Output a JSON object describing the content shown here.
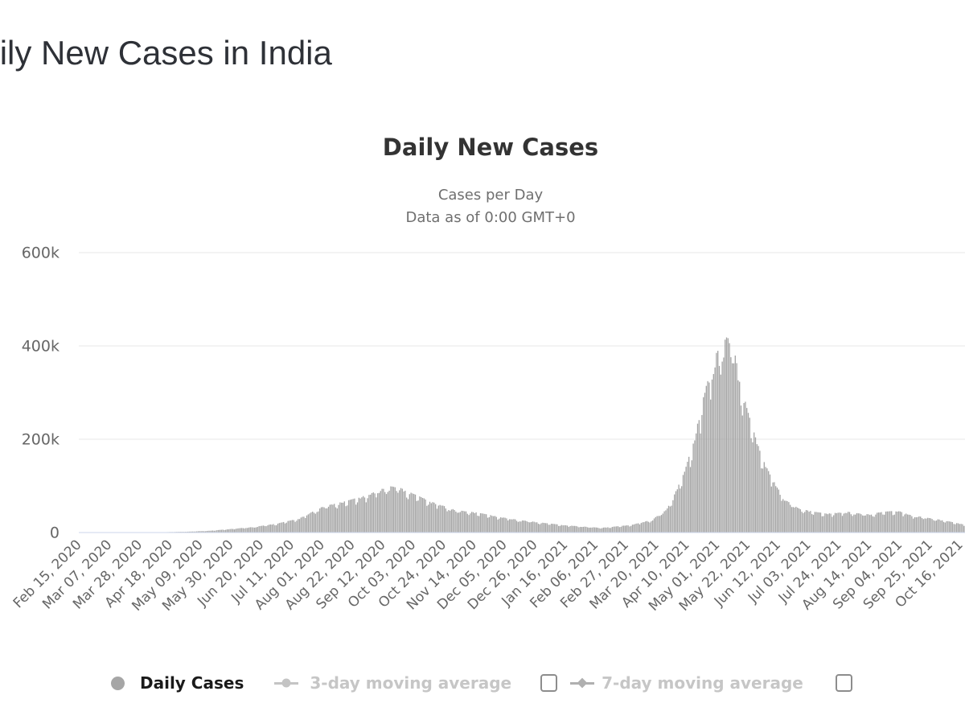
{
  "page": {
    "title": "Daily New Cases in India"
  },
  "chart": {
    "title": "Daily New Cases",
    "subtitle_line1": "Cases per Day",
    "subtitle_line2": "Data as of 0:00 GMT+0"
  },
  "colors": {
    "bar": "#a2a2a2",
    "grid_line": "#e7e7e7",
    "axis_line": "#ccd6eb",
    "tick_text": "#666666",
    "chart_title": "#333333",
    "subtitle_text": "#6f6f6f",
    "legend_active": "#1a1a1a",
    "legend_disabled": "#c6c6c6",
    "ma3_marker": "#c4c4c4",
    "ma7_marker": "#b0b0b0"
  },
  "chart_data": {
    "type": "bar",
    "title": "Daily New Cases",
    "subtitle": [
      "Cases per Day",
      "Data as of 0:00 GMT+0"
    ],
    "ylabel": "",
    "xlabel": "",
    "ylim": [
      0,
      600000
    ],
    "grid": true,
    "legend_position": "bottom",
    "x_is_daily_dates": true,
    "x_start_date": "Feb 15, 2020",
    "x_tick_interval_days": 21,
    "x_tick_labels": [
      "Feb 15, 2020",
      "Mar 07, 2020",
      "Mar 28, 2020",
      "Apr 18, 2020",
      "May 09, 2020",
      "May 30, 2020",
      "Jun 20, 2020",
      "Jul 11, 2020",
      "Aug 01, 2020",
      "Aug 22, 2020",
      "Sep 12, 2020",
      "Oct 03, 2020",
      "Oct 24, 2020",
      "Nov 14, 2020",
      "Dec 05, 2020",
      "Dec 26, 2020",
      "Jan 16, 2021",
      "Feb 06, 2021",
      "Feb 27, 2021",
      "Mar 20, 2021",
      "Apr 10, 2021",
      "May 01, 2021",
      "May 22, 2021",
      "Jun 12, 2021",
      "Jul 03, 2021",
      "Jul 24, 2021",
      "Aug 14, 2021",
      "Sep 04, 2021",
      "Sep 25, 2021",
      "Oct 16, 2021"
    ],
    "y_ticks": [
      {
        "label": "0",
        "value": 0
      },
      {
        "label": "200k",
        "value": 200000
      },
      {
        "label": "400k",
        "value": 400000
      },
      {
        "label": "600k",
        "value": 600000
      }
    ],
    "series": [
      {
        "name": "Daily Cases",
        "type": "column",
        "visible": true,
        "color": "#a2a2a2",
        "n_days": 613,
        "anchors_day_value": [
          [
            0,
            2
          ],
          [
            20,
            5
          ],
          [
            30,
            40
          ],
          [
            40,
            120
          ],
          [
            47,
            350
          ],
          [
            60,
            900
          ],
          [
            76,
            1900
          ],
          [
            91,
            3900
          ],
          [
            106,
            7800
          ],
          [
            121,
            11800
          ],
          [
            137,
            19000
          ],
          [
            152,
            29500
          ],
          [
            168,
            54000
          ],
          [
            183,
            64500
          ],
          [
            199,
            78000
          ],
          [
            208,
            89500
          ],
          [
            214,
            96000
          ],
          [
            221,
            93500
          ],
          [
            229,
            82500
          ],
          [
            244,
            63000
          ],
          [
            260,
            46500
          ],
          [
            275,
            41500
          ],
          [
            290,
            32500
          ],
          [
            305,
            25500
          ],
          [
            321,
            20000
          ],
          [
            336,
            15000
          ],
          [
            352,
            11600
          ],
          [
            360,
            9800
          ],
          [
            367,
            11600
          ],
          [
            381,
            15800
          ],
          [
            395,
            26000
          ],
          [
            405,
            46000
          ],
          [
            411,
            79000
          ],
          [
            418,
            126000
          ],
          [
            425,
            198000
          ],
          [
            432,
            294000
          ],
          [
            440,
            372000
          ],
          [
            447,
            404000
          ],
          [
            451,
            398000
          ],
          [
            455,
            335000
          ],
          [
            461,
            258000
          ],
          [
            468,
            187000
          ],
          [
            475,
            133000
          ],
          [
            482,
            93000
          ],
          [
            489,
            65000
          ],
          [
            496,
            51500
          ],
          [
            503,
            45800
          ],
          [
            510,
            42000
          ],
          [
            517,
            39500
          ],
          [
            524,
            41000
          ],
          [
            531,
            43000
          ],
          [
            538,
            39800
          ],
          [
            545,
            37800
          ],
          [
            552,
            41500
          ],
          [
            559,
            44200
          ],
          [
            566,
            44800
          ],
          [
            573,
            37000
          ],
          [
            580,
            33500
          ],
          [
            587,
            30000
          ],
          [
            594,
            27000
          ],
          [
            601,
            23000
          ],
          [
            608,
            18500
          ],
          [
            612,
            16500
          ]
        ],
        "weekday_factors": [
          0.05,
          0.01,
          -0.13,
          -0.09,
          -0.01,
          0.04,
          0.07
        ],
        "note": "daily bar values = linear interpolation of anchors with weekday reporting oscillation; wave-1 peak ~96k (mid Sep 2020), wave-2 peak ~410k (early May 2021)"
      },
      {
        "name": "3-day moving average",
        "type": "line",
        "visible": false,
        "marker": "circle"
      },
      {
        "name": "7-day moving average",
        "type": "line",
        "visible": false,
        "marker": "diamond"
      }
    ]
  }
}
